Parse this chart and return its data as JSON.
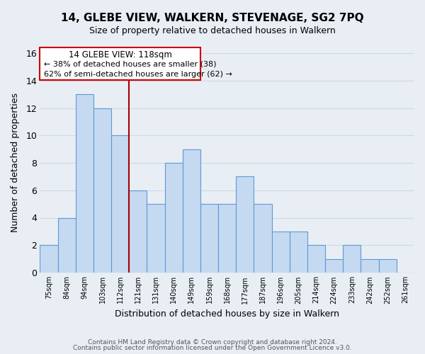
{
  "title": "14, GLEBE VIEW, WALKERN, STEVENAGE, SG2 7PQ",
  "subtitle": "Size of property relative to detached houses in Walkern",
  "xlabel": "Distribution of detached houses by size in Walkern",
  "ylabel": "Number of detached properties",
  "bin_labels": [
    "75sqm",
    "84sqm",
    "94sqm",
    "103sqm",
    "112sqm",
    "121sqm",
    "131sqm",
    "140sqm",
    "149sqm",
    "159sqm",
    "168sqm",
    "177sqm",
    "187sqm",
    "196sqm",
    "205sqm",
    "214sqm",
    "224sqm",
    "233sqm",
    "242sqm",
    "252sqm",
    "261sqm"
  ],
  "bin_values": [
    2,
    4,
    13,
    12,
    10,
    6,
    5,
    8,
    9,
    5,
    5,
    7,
    5,
    3,
    3,
    2,
    1,
    2,
    1,
    1,
    0
  ],
  "bar_color": "#c5d9f1",
  "bar_edge_color": "#5b9bd5",
  "highlight_label": "14 GLEBE VIEW: 118sqm",
  "annotation_line1": "← 38% of detached houses are smaller (38)",
  "annotation_line2": "62% of semi-detached houses are larger (62) →",
  "annotation_box_color": "#ffffff",
  "annotation_box_edge": "#cc0000",
  "vline_color": "#aa0000",
  "ylim": [
    0,
    16
  ],
  "yticks": [
    0,
    2,
    4,
    6,
    8,
    10,
    12,
    14,
    16
  ],
  "grid_color": "#d0d8e8",
  "bg_color": "#e8eef4",
  "footer1": "Contains HM Land Registry data © Crown copyright and database right 2024.",
  "footer2": "Contains public sector information licensed under the Open Government Licence v3.0."
}
